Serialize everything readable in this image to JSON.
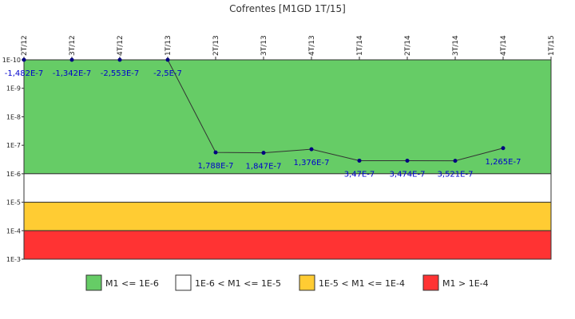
{
  "chart_data": {
    "type": "line",
    "title": "Cofrentes [M1GD 1T/15]",
    "y_scale": "log",
    "y_inverted": true,
    "ylim": [
      1e-10,
      0.001
    ],
    "y_tick_labels": [
      "1E-10",
      "1E-9",
      "1E-8",
      "1E-7",
      "1E-6",
      "1E-5",
      "1E-4",
      "1E-3"
    ],
    "categories": [
      "2T/12",
      "3T/12",
      "4T/12",
      "1T/13",
      "2T/13",
      "3T/13",
      "4T/13",
      "1T/14",
      "2T/14",
      "3T/14",
      "4T/14",
      "1T/15"
    ],
    "series": [
      {
        "values": [
          -1.482e-07,
          -1.342e-07,
          -2.553e-07,
          -2.5e-07,
          1.788e-07,
          1.847e-07,
          1.376e-07,
          3.47e-07,
          3.474e-07,
          3.521e-07,
          1.265e-07,
          null
        ],
        "labels": [
          "-1,482E-7",
          "-1,342E-7",
          "-2,553E-7",
          "-2,5E-7",
          "1,788E-7",
          "1,847E-7",
          "1,376E-7",
          "3,47E-7",
          "3,474E-7",
          "3,521E-7",
          "1,265E-7",
          ""
        ],
        "color": "#000080"
      }
    ],
    "bands": [
      {
        "from": 1e-10,
        "to": 1e-06,
        "color": "#66cc66",
        "label": "M1 <= 1E-6"
      },
      {
        "from": 1e-06,
        "to": 1e-05,
        "color": "#ffffff",
        "label": "1E-6 < M1 <= 1E-5"
      },
      {
        "from": 1e-05,
        "to": 0.0001,
        "color": "#ffcc33",
        "label": "1E-5 < M1 <= 1E-4"
      },
      {
        "from": 0.0001,
        "to": 0.001,
        "color": "#ff3333",
        "label": "M1 > 1E-4"
      }
    ],
    "legend_position": "bottom"
  }
}
